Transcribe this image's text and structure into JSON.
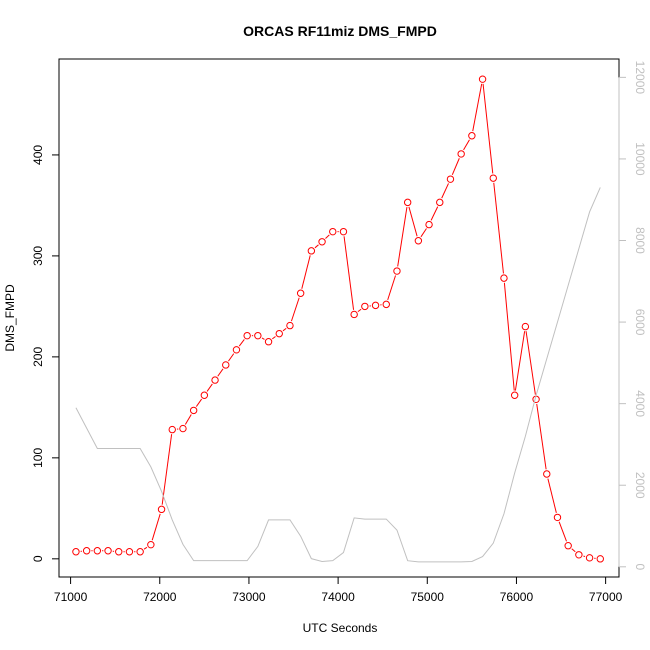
{
  "chart_data": {
    "type": "line",
    "title": "ORCAS RF11miz DMS_FMPD",
    "xlabel": "UTC Seconds",
    "ylabel": "DMS_FMPD",
    "xlim": [
      70870,
      77150
    ],
    "ylim": [
      -18,
      495
    ],
    "y2lim": [
      -250,
      12450
    ],
    "x_ticks": [
      71000,
      72000,
      73000,
      74000,
      75000,
      76000,
      77000
    ],
    "y_ticks": [
      0,
      100,
      200,
      300,
      400
    ],
    "y2_ticks": [
      0,
      2000,
      4000,
      6000,
      8000,
      10000,
      12000
    ],
    "series": [
      {
        "axis": "left",
        "color": "#ff0000",
        "markers": "open-circle",
        "points": [
          [
            71060,
            7
          ],
          [
            71180,
            8
          ],
          [
            71300,
            8
          ],
          [
            71420,
            8
          ],
          [
            71540,
            7
          ],
          [
            71660,
            7
          ],
          [
            71780,
            7
          ],
          [
            71900,
            14
          ],
          [
            72020,
            49
          ],
          [
            72140,
            128
          ],
          [
            72260,
            129
          ],
          [
            72380,
            147
          ],
          [
            72500,
            162
          ],
          [
            72620,
            177
          ],
          [
            72740,
            192
          ],
          [
            72860,
            207
          ],
          [
            72980,
            221
          ],
          [
            73100,
            221
          ],
          [
            73220,
            215
          ],
          [
            73340,
            223
          ],
          [
            73460,
            231
          ],
          [
            73580,
            263
          ],
          [
            73700,
            305
          ],
          [
            73820,
            314
          ],
          [
            73940,
            324
          ],
          [
            74060,
            324
          ],
          [
            74180,
            242
          ],
          [
            74300,
            250
          ],
          [
            74420,
            251
          ],
          [
            74540,
            252
          ],
          [
            74660,
            285
          ],
          [
            74780,
            353
          ],
          [
            74900,
            315
          ],
          [
            75020,
            331
          ],
          [
            75140,
            353
          ],
          [
            75260,
            376
          ],
          [
            75380,
            401
          ],
          [
            75500,
            419
          ],
          [
            75620,
            475
          ],
          [
            75740,
            377
          ],
          [
            75860,
            278
          ],
          [
            75980,
            162
          ],
          [
            76100,
            230
          ],
          [
            76220,
            158
          ],
          [
            76340,
            84
          ],
          [
            76460,
            41
          ],
          [
            76580,
            13
          ],
          [
            76700,
            4
          ],
          [
            76820,
            1
          ],
          [
            76940,
            0
          ]
        ]
      },
      {
        "axis": "right",
        "color": "#c0c0c0",
        "markers": "none",
        "points": [
          [
            71060,
            3900
          ],
          [
            71180,
            3400
          ],
          [
            71300,
            2900
          ],
          [
            71420,
            2900
          ],
          [
            71540,
            2900
          ],
          [
            71660,
            2900
          ],
          [
            71780,
            2900
          ],
          [
            71900,
            2450
          ],
          [
            72020,
            1850
          ],
          [
            72140,
            1150
          ],
          [
            72260,
            550
          ],
          [
            72380,
            150
          ],
          [
            72500,
            150
          ],
          [
            72620,
            150
          ],
          [
            72740,
            150
          ],
          [
            72860,
            150
          ],
          [
            72980,
            150
          ],
          [
            73100,
            500
          ],
          [
            73220,
            1150
          ],
          [
            73340,
            1150
          ],
          [
            73460,
            1150
          ],
          [
            73580,
            750
          ],
          [
            73700,
            200
          ],
          [
            73820,
            130
          ],
          [
            73940,
            150
          ],
          [
            74060,
            350
          ],
          [
            74180,
            1200
          ],
          [
            74300,
            1170
          ],
          [
            74420,
            1170
          ],
          [
            74540,
            1170
          ],
          [
            74660,
            900
          ],
          [
            74780,
            150
          ],
          [
            74900,
            120
          ],
          [
            75020,
            120
          ],
          [
            75140,
            120
          ],
          [
            75260,
            120
          ],
          [
            75380,
            120
          ],
          [
            75500,
            130
          ],
          [
            75620,
            250
          ],
          [
            75740,
            580
          ],
          [
            75860,
            1300
          ],
          [
            75980,
            2300
          ],
          [
            76100,
            3200
          ],
          [
            76220,
            4200
          ],
          [
            76340,
            5100
          ],
          [
            76460,
            6000
          ],
          [
            76580,
            6900
          ],
          [
            76700,
            7800
          ],
          [
            76820,
            8700
          ],
          [
            76940,
            9300
          ]
        ]
      }
    ]
  }
}
